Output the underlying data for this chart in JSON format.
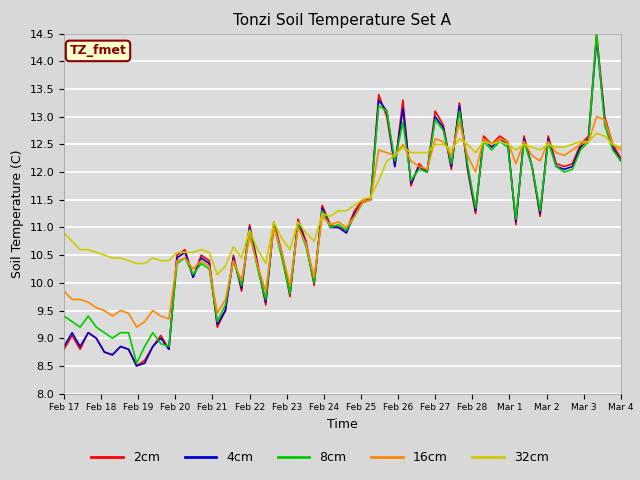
{
  "title": "Tonzi Soil Temperature Set A",
  "xlabel": "Time",
  "ylabel": "Soil Temperature (C)",
  "ylim": [
    8.0,
    14.5
  ],
  "fig_bg": "#d8d8d8",
  "plot_bg": "#dcdcdc",
  "grid_color": "#ffffff",
  "annotation_text": "TZ_fmet",
  "annotation_bg": "#ffffcc",
  "annotation_border": "#8b0000",
  "x_labels": [
    "Feb 17",
    "Feb 18",
    "Feb 19",
    "Feb 20",
    "Feb 21",
    "Feb 22",
    "Feb 23",
    "Feb 24",
    "Feb 25",
    "Feb 26",
    "Feb 27",
    "Feb 28",
    "Mar 1",
    "Mar 2",
    "Mar 3",
    "Mar 4"
  ],
  "series_order": [
    "2cm",
    "4cm",
    "8cm",
    "16cm",
    "32cm"
  ],
  "series": {
    "2cm": {
      "color": "#ff0000",
      "label": "2cm",
      "values": [
        8.8,
        9.05,
        8.8,
        9.1,
        9.0,
        8.75,
        8.7,
        8.85,
        8.8,
        8.5,
        8.6,
        8.85,
        9.05,
        8.8,
        10.5,
        10.6,
        10.1,
        10.5,
        10.4,
        9.2,
        9.5,
        10.5,
        9.85,
        11.05,
        10.35,
        9.6,
        11.1,
        10.55,
        9.75,
        11.15,
        10.75,
        9.95,
        11.4,
        11.05,
        11.0,
        10.95,
        11.3,
        11.5,
        11.5,
        13.4,
        13.0,
        12.1,
        13.3,
        11.75,
        12.15,
        12.0,
        13.1,
        12.85,
        12.05,
        13.25,
        12.05,
        11.25,
        12.65,
        12.5,
        12.65,
        12.55,
        11.05,
        12.65,
        12.1,
        11.2,
        12.65,
        12.15,
        12.1,
        12.15,
        12.5,
        12.65,
        14.5,
        13.0,
        12.5,
        12.25
      ]
    },
    "4cm": {
      "color": "#0000cc",
      "label": "4cm",
      "values": [
        8.85,
        9.1,
        8.85,
        9.1,
        9.0,
        8.75,
        8.7,
        8.85,
        8.8,
        8.5,
        8.55,
        8.85,
        9.0,
        8.8,
        10.45,
        10.55,
        10.1,
        10.45,
        10.35,
        9.25,
        9.5,
        10.45,
        9.9,
        11.0,
        10.3,
        9.65,
        11.05,
        10.5,
        9.8,
        11.1,
        10.7,
        10.0,
        11.35,
        11.0,
        11.0,
        10.9,
        11.25,
        11.45,
        11.5,
        13.3,
        13.1,
        12.1,
        13.15,
        11.8,
        12.1,
        12.0,
        13.0,
        12.8,
        12.1,
        13.2,
        12.1,
        11.3,
        12.6,
        12.45,
        12.6,
        12.5,
        11.1,
        12.6,
        12.1,
        11.25,
        12.6,
        12.1,
        12.05,
        12.1,
        12.45,
        12.6,
        14.4,
        12.95,
        12.45,
        12.2
      ]
    },
    "8cm": {
      "color": "#00cc00",
      "label": "8cm",
      "values": [
        9.4,
        9.3,
        9.2,
        9.4,
        9.2,
        9.1,
        9.0,
        9.1,
        9.1,
        8.55,
        8.85,
        9.1,
        8.9,
        8.85,
        10.35,
        10.45,
        10.15,
        10.35,
        10.25,
        9.3,
        9.6,
        10.4,
        9.95,
        10.95,
        10.25,
        9.7,
        11.05,
        10.45,
        9.8,
        11.05,
        10.65,
        10.0,
        11.3,
        11.0,
        11.05,
        10.95,
        11.2,
        11.45,
        11.5,
        13.2,
        13.1,
        12.2,
        12.9,
        11.85,
        12.05,
        12.0,
        12.95,
        12.75,
        12.15,
        13.1,
        12.15,
        11.35,
        12.55,
        12.4,
        12.55,
        12.45,
        11.15,
        12.55,
        12.1,
        11.3,
        12.55,
        12.1,
        12.0,
        12.05,
        12.4,
        12.55,
        14.5,
        12.85,
        12.4,
        12.2
      ]
    },
    "16cm": {
      "color": "#ff8800",
      "label": "16cm",
      "values": [
        9.85,
        9.7,
        9.7,
        9.65,
        9.55,
        9.5,
        9.4,
        9.5,
        9.45,
        9.2,
        9.3,
        9.5,
        9.4,
        9.35,
        10.4,
        10.45,
        10.25,
        10.4,
        10.3,
        9.45,
        9.7,
        10.4,
        10.05,
        10.85,
        10.3,
        9.85,
        11.0,
        10.55,
        9.95,
        11.0,
        10.7,
        10.1,
        11.2,
        11.05,
        11.1,
        11.0,
        11.2,
        11.45,
        11.5,
        12.4,
        12.35,
        12.3,
        12.5,
        12.2,
        12.1,
        12.05,
        12.6,
        12.55,
        12.3,
        12.9,
        12.3,
        12.0,
        12.6,
        12.5,
        12.6,
        12.55,
        12.15,
        12.55,
        12.3,
        12.2,
        12.55,
        12.35,
        12.3,
        12.4,
        12.5,
        12.55,
        13.0,
        12.95,
        12.5,
        12.4
      ]
    },
    "32cm": {
      "color": "#cccc00",
      "label": "32cm",
      "values": [
        10.9,
        10.75,
        10.6,
        10.6,
        10.55,
        10.5,
        10.45,
        10.45,
        10.4,
        10.35,
        10.35,
        10.45,
        10.4,
        10.4,
        10.55,
        10.55,
        10.55,
        10.6,
        10.55,
        10.15,
        10.3,
        10.65,
        10.45,
        10.95,
        10.6,
        10.35,
        11.1,
        10.8,
        10.6,
        11.1,
        10.9,
        10.75,
        11.25,
        11.2,
        11.3,
        11.3,
        11.4,
        11.5,
        11.55,
        11.85,
        12.2,
        12.3,
        12.45,
        12.35,
        12.35,
        12.35,
        12.5,
        12.5,
        12.4,
        12.6,
        12.5,
        12.35,
        12.55,
        12.5,
        12.55,
        12.5,
        12.4,
        12.5,
        12.45,
        12.4,
        12.5,
        12.45,
        12.45,
        12.5,
        12.55,
        12.55,
        12.7,
        12.65,
        12.5,
        12.45
      ]
    }
  }
}
